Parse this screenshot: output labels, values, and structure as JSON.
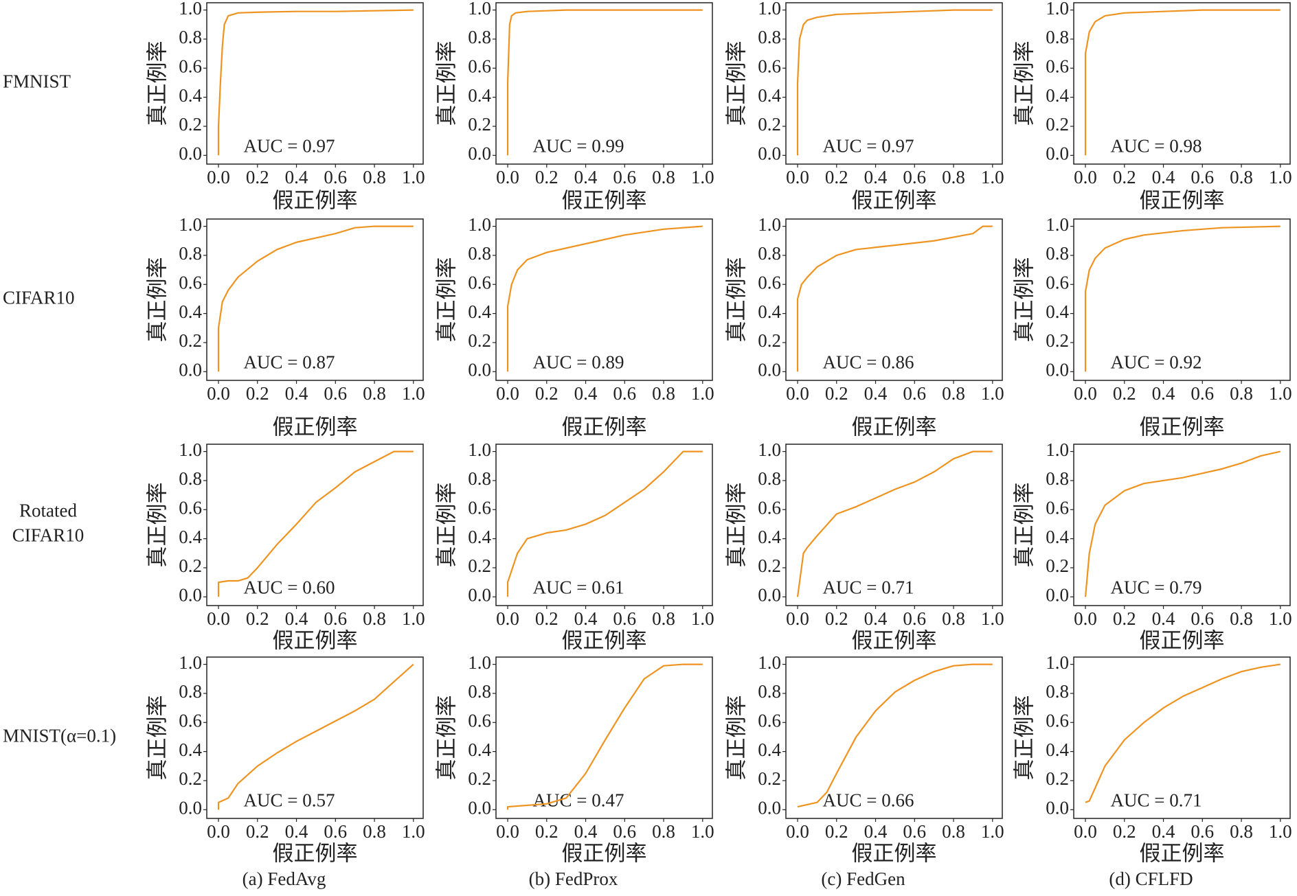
{
  "row_labels": [
    [
      "FMNIST"
    ],
    [
      "CIFAR10"
    ],
    [
      "Rotated",
      "CIFAR10"
    ],
    [
      "MNIST(α=0.1)"
    ]
  ],
  "captions": [
    "(a) FedAvg",
    "(b) FedProx",
    "(c) FedGen",
    "(d) CFLFD"
  ],
  "chart_data": [
    {
      "type": "line",
      "annotation": "AUC = 0.97",
      "xlabel": "假正例率",
      "ylabel": "真正例率",
      "color": "#ef9320",
      "x": [
        0,
        0,
        0.01,
        0.02,
        0.03,
        0.05,
        0.1,
        0.2,
        0.4,
        0.6,
        1
      ],
      "values": [
        0,
        0.2,
        0.5,
        0.75,
        0.9,
        0.96,
        0.98,
        0.985,
        0.99,
        0.99,
        1
      ],
      "xlim": [
        -0.06,
        1.05
      ],
      "ylim": [
        -0.06,
        1.05
      ],
      "xticks": [
        {
          "value": 0,
          "label": "0.0"
        },
        0.2,
        0.4,
        0.6,
        0.8,
        {
          "value": 1,
          "label": "1.0"
        }
      ],
      "yticks": [
        {
          "value": 0,
          "label": "0.0"
        },
        0.2,
        0.4,
        0.6,
        0.8,
        {
          "value": 1,
          "label": "1.0"
        }
      ]
    },
    {
      "type": "line",
      "annotation": "AUC = 0.99",
      "xlabel": "假正例率",
      "ylabel": "真正例率",
      "color": "#ef9320",
      "x": [
        0,
        0,
        0.01,
        0.02,
        0.04,
        0.1,
        0.3,
        1
      ],
      "values": [
        0,
        0.5,
        0.9,
        0.96,
        0.98,
        0.99,
        1,
        1
      ],
      "xlim": [
        -0.06,
        1.05
      ],
      "ylim": [
        -0.06,
        1.05
      ],
      "xticks": [
        {
          "value": 0,
          "label": "0.0"
        },
        0.2,
        0.4,
        0.6,
        0.8,
        {
          "value": 1,
          "label": "1.0"
        }
      ],
      "yticks": [
        {
          "value": 0,
          "label": "0.0"
        },
        0.2,
        0.4,
        0.6,
        0.8,
        {
          "value": 1,
          "label": "1.0"
        }
      ]
    },
    {
      "type": "line",
      "annotation": "AUC = 0.97",
      "xlabel": "假正例率",
      "ylabel": "真正例率",
      "color": "#ef9320",
      "x": [
        0,
        0,
        0.01,
        0.03,
        0.05,
        0.1,
        0.2,
        0.4,
        0.6,
        0.8,
        1
      ],
      "values": [
        0,
        0.5,
        0.8,
        0.9,
        0.93,
        0.95,
        0.97,
        0.98,
        0.99,
        1,
        1
      ],
      "xlim": [
        -0.06,
        1.05
      ],
      "ylim": [
        -0.06,
        1.05
      ],
      "xticks": [
        {
          "value": 0,
          "label": "0.0"
        },
        0.2,
        0.4,
        0.6,
        0.8,
        {
          "value": 1,
          "label": "1.0"
        }
      ],
      "yticks": [
        {
          "value": 0,
          "label": "0.0"
        },
        0.2,
        0.4,
        0.6,
        0.8,
        {
          "value": 1,
          "label": "1.0"
        }
      ]
    },
    {
      "type": "line",
      "annotation": "AUC = 0.98",
      "xlabel": "假正例率",
      "ylabel": "真正例率",
      "color": "#ef9320",
      "x": [
        0,
        0,
        0.02,
        0.05,
        0.1,
        0.2,
        0.4,
        0.6,
        1
      ],
      "values": [
        0,
        0.7,
        0.85,
        0.92,
        0.96,
        0.98,
        0.99,
        1,
        1
      ],
      "xlim": [
        -0.06,
        1.05
      ],
      "ylim": [
        -0.06,
        1.05
      ],
      "xticks": [
        {
          "value": 0,
          "label": "0.0"
        },
        0.2,
        0.4,
        0.6,
        0.8,
        {
          "value": 1,
          "label": "1.0"
        }
      ],
      "yticks": [
        {
          "value": 0,
          "label": "0.0"
        },
        0.2,
        0.4,
        0.6,
        0.8,
        {
          "value": 1,
          "label": "1.0"
        }
      ]
    },
    {
      "type": "line",
      "annotation": "AUC = 0.87",
      "xlabel": "假正例率",
      "ylabel": "真正例率",
      "color": "#ef9320",
      "x": [
        0,
        0,
        0.02,
        0.05,
        0.1,
        0.2,
        0.3,
        0.4,
        0.5,
        0.6,
        0.7,
        0.8,
        1
      ],
      "values": [
        0,
        0.3,
        0.48,
        0.56,
        0.65,
        0.76,
        0.84,
        0.89,
        0.92,
        0.95,
        0.99,
        1,
        1
      ],
      "xlim": [
        -0.06,
        1.05
      ],
      "ylim": [
        -0.06,
        1.05
      ],
      "xticks": [
        {
          "value": 0,
          "label": "0.0"
        },
        0.2,
        0.4,
        0.6,
        0.8,
        {
          "value": 1,
          "label": "1.0"
        }
      ],
      "yticks": [
        {
          "value": 0,
          "label": "0.0"
        },
        0.2,
        0.4,
        0.6,
        0.8,
        {
          "value": 1,
          "label": "1.0"
        }
      ]
    },
    {
      "type": "line",
      "annotation": "AUC = 0.89",
      "xlabel": "假正例率",
      "ylabel": "真正例率",
      "color": "#ef9320",
      "x": [
        0,
        0,
        0.02,
        0.05,
        0.1,
        0.2,
        0.4,
        0.6,
        0.8,
        1
      ],
      "values": [
        0,
        0.45,
        0.6,
        0.7,
        0.77,
        0.82,
        0.88,
        0.94,
        0.98,
        1
      ],
      "xlim": [
        -0.06,
        1.05
      ],
      "ylim": [
        -0.06,
        1.05
      ],
      "xticks": [
        {
          "value": 0,
          "label": "0.0"
        },
        0.2,
        0.4,
        0.6,
        0.8,
        {
          "value": 1,
          "label": "1.0"
        }
      ],
      "yticks": [
        {
          "value": 0,
          "label": "0.0"
        },
        0.2,
        0.4,
        0.6,
        0.8,
        {
          "value": 1,
          "label": "1.0"
        }
      ]
    },
    {
      "type": "line",
      "annotation": "AUC = 0.86",
      "xlabel": "假正例率",
      "ylabel": "真正例率",
      "color": "#ef9320",
      "x": [
        0,
        0,
        0.02,
        0.05,
        0.1,
        0.2,
        0.3,
        0.5,
        0.7,
        0.9,
        0.95,
        1
      ],
      "values": [
        0,
        0.5,
        0.6,
        0.65,
        0.72,
        0.8,
        0.84,
        0.87,
        0.9,
        0.95,
        1,
        1
      ],
      "xlim": [
        -0.06,
        1.05
      ],
      "ylim": [
        -0.06,
        1.05
      ],
      "xticks": [
        {
          "value": 0,
          "label": "0.0"
        },
        0.2,
        0.4,
        0.6,
        0.8,
        {
          "value": 1,
          "label": "1.0"
        }
      ],
      "yticks": [
        {
          "value": 0,
          "label": "0.0"
        },
        0.2,
        0.4,
        0.6,
        0.8,
        {
          "value": 1,
          "label": "1.0"
        }
      ]
    },
    {
      "type": "line",
      "annotation": "AUC = 0.92",
      "xlabel": "假正例率",
      "ylabel": "真正例率",
      "color": "#ef9320",
      "x": [
        0,
        0,
        0.02,
        0.05,
        0.1,
        0.2,
        0.3,
        0.5,
        0.7,
        1
      ],
      "values": [
        0,
        0.55,
        0.7,
        0.78,
        0.85,
        0.91,
        0.94,
        0.97,
        0.99,
        1
      ],
      "xlim": [
        -0.06,
        1.05
      ],
      "ylim": [
        -0.06,
        1.05
      ],
      "xticks": [
        {
          "value": 0,
          "label": "0.0"
        },
        0.2,
        0.4,
        0.6,
        0.8,
        {
          "value": 1,
          "label": "1.0"
        }
      ],
      "yticks": [
        {
          "value": 0,
          "label": "0.0"
        },
        0.2,
        0.4,
        0.6,
        0.8,
        {
          "value": 1,
          "label": "1.0"
        }
      ]
    },
    {
      "type": "line",
      "annotation": "AUC = 0.60",
      "xlabel": "假正例率",
      "ylabel": "真正例率",
      "color": "#ef9320",
      "x": [
        0,
        0,
        0.05,
        0.1,
        0.15,
        0.2,
        0.3,
        0.4,
        0.5,
        0.6,
        0.7,
        0.8,
        0.9,
        1
      ],
      "values": [
        0,
        0.1,
        0.11,
        0.11,
        0.13,
        0.2,
        0.36,
        0.5,
        0.65,
        0.75,
        0.86,
        0.93,
        1,
        1
      ],
      "xlim": [
        -0.06,
        1.05
      ],
      "ylim": [
        -0.06,
        1.05
      ],
      "xticks": [
        {
          "value": 0,
          "label": "0.0"
        },
        0.2,
        0.4,
        0.6,
        0.8,
        {
          "value": 1,
          "label": "1.0"
        }
      ],
      "yticks": [
        {
          "value": 0,
          "label": "0.0"
        },
        0.2,
        0.4,
        0.6,
        0.8,
        {
          "value": 1,
          "label": "1.0"
        }
      ]
    },
    {
      "type": "line",
      "annotation": "AUC = 0.61",
      "xlabel": "假正例率",
      "ylabel": "真正例率",
      "color": "#ef9320",
      "x": [
        0,
        0,
        0.05,
        0.1,
        0.2,
        0.3,
        0.4,
        0.5,
        0.6,
        0.7,
        0.8,
        0.9,
        1
      ],
      "values": [
        0,
        0.1,
        0.3,
        0.4,
        0.44,
        0.46,
        0.5,
        0.56,
        0.65,
        0.74,
        0.86,
        1,
        1
      ],
      "xlim": [
        -0.06,
        1.05
      ],
      "ylim": [
        -0.06,
        1.05
      ],
      "xticks": [
        {
          "value": 0,
          "label": "0.0"
        },
        0.2,
        0.4,
        0.6,
        0.8,
        {
          "value": 1,
          "label": "1.0"
        }
      ],
      "yticks": [
        {
          "value": 0,
          "label": "0.0"
        },
        0.2,
        0.4,
        0.6,
        0.8,
        {
          "value": 1,
          "label": "1.0"
        }
      ]
    },
    {
      "type": "line",
      "annotation": "AUC = 0.71",
      "xlabel": "假正例率",
      "ylabel": "真正例率",
      "color": "#ef9320",
      "x": [
        0,
        0.03,
        0.05,
        0.1,
        0.2,
        0.3,
        0.4,
        0.5,
        0.6,
        0.7,
        0.8,
        0.9,
        1
      ],
      "values": [
        0,
        0.3,
        0.34,
        0.42,
        0.57,
        0.62,
        0.68,
        0.74,
        0.79,
        0.86,
        0.95,
        1,
        1
      ],
      "xlim": [
        -0.06,
        1.05
      ],
      "ylim": [
        -0.06,
        1.05
      ],
      "xticks": [
        {
          "value": 0,
          "label": "0.0"
        },
        0.2,
        0.4,
        0.6,
        0.8,
        {
          "value": 1,
          "label": "1.0"
        }
      ],
      "yticks": [
        {
          "value": 0,
          "label": "0.0"
        },
        0.2,
        0.4,
        0.6,
        0.8,
        {
          "value": 1,
          "label": "1.0"
        }
      ]
    },
    {
      "type": "line",
      "annotation": "AUC = 0.79",
      "xlabel": "假正例率",
      "ylabel": "真正例率",
      "color": "#ef9320",
      "x": [
        0,
        0.02,
        0.05,
        0.1,
        0.2,
        0.3,
        0.4,
        0.5,
        0.6,
        0.7,
        0.8,
        0.9,
        1
      ],
      "values": [
        0,
        0.3,
        0.5,
        0.63,
        0.73,
        0.78,
        0.8,
        0.82,
        0.85,
        0.88,
        0.92,
        0.97,
        1
      ],
      "xlim": [
        -0.06,
        1.05
      ],
      "ylim": [
        -0.06,
        1.05
      ],
      "xticks": [
        {
          "value": 0,
          "label": "0.0"
        },
        0.2,
        0.4,
        0.6,
        0.8,
        {
          "value": 1,
          "label": "1.0"
        }
      ],
      "yticks": [
        {
          "value": 0,
          "label": "0.0"
        },
        0.2,
        0.4,
        0.6,
        0.8,
        {
          "value": 1,
          "label": "1.0"
        }
      ]
    },
    {
      "type": "line",
      "annotation": "AUC = 0.57",
      "xlabel": "假正例率",
      "ylabel": "真正例率",
      "color": "#ef9320",
      "x": [
        0,
        0,
        0.05,
        0.1,
        0.2,
        0.3,
        0.4,
        0.5,
        0.6,
        0.7,
        0.8,
        0.9,
        1
      ],
      "values": [
        0,
        0.05,
        0.08,
        0.18,
        0.3,
        0.39,
        0.47,
        0.54,
        0.61,
        0.68,
        0.76,
        0.88,
        1
      ],
      "xlim": [
        -0.06,
        1.05
      ],
      "ylim": [
        -0.06,
        1.05
      ],
      "xticks": [
        {
          "value": 0,
          "label": "0.0"
        },
        0.2,
        0.4,
        0.6,
        0.8,
        {
          "value": 1,
          "label": "1.0"
        }
      ],
      "yticks": [
        {
          "value": 0,
          "label": "0.0"
        },
        0.2,
        0.4,
        0.6,
        0.8,
        {
          "value": 1,
          "label": "1.0"
        }
      ]
    },
    {
      "type": "line",
      "annotation": "AUC = 0.47",
      "xlabel": "假正例率",
      "ylabel": "真正例率",
      "color": "#ef9320",
      "x": [
        0,
        0,
        0.1,
        0.2,
        0.3,
        0.4,
        0.5,
        0.6,
        0.7,
        0.8,
        0.9,
        1
      ],
      "values": [
        0,
        0.02,
        0.03,
        0.04,
        0.08,
        0.25,
        0.48,
        0.7,
        0.9,
        0.99,
        1,
        1
      ],
      "xlim": [
        -0.06,
        1.05
      ],
      "ylim": [
        -0.06,
        1.05
      ],
      "xticks": [
        {
          "value": 0,
          "label": "0.0"
        },
        0.2,
        0.4,
        0.6,
        0.8,
        {
          "value": 1,
          "label": "1.0"
        }
      ],
      "yticks": [
        {
          "value": 0,
          "label": "0.0"
        },
        0.2,
        0.4,
        0.6,
        0.8,
        {
          "value": 1,
          "label": "1.0"
        }
      ]
    },
    {
      "type": "line",
      "annotation": "AUC = 0.66",
      "xlabel": "假正例率",
      "ylabel": "真正例率",
      "color": "#ef9320",
      "x": [
        0,
        0.1,
        0.15,
        0.2,
        0.3,
        0.4,
        0.5,
        0.6,
        0.7,
        0.8,
        0.9,
        1
      ],
      "values": [
        0.02,
        0.05,
        0.12,
        0.25,
        0.5,
        0.68,
        0.81,
        0.89,
        0.95,
        0.99,
        1,
        1
      ],
      "xlim": [
        -0.06,
        1.05
      ],
      "ylim": [
        -0.06,
        1.05
      ],
      "xticks": [
        {
          "value": 0,
          "label": "0.0"
        },
        0.2,
        0.4,
        0.6,
        0.8,
        {
          "value": 1,
          "label": "1.0"
        }
      ],
      "yticks": [
        {
          "value": 0,
          "label": "0.0"
        },
        0.2,
        0.4,
        0.6,
        0.8,
        {
          "value": 1,
          "label": "1.0"
        }
      ]
    },
    {
      "type": "line",
      "annotation": "AUC = 0.71",
      "xlabel": "假正例率",
      "ylabel": "真正例率",
      "color": "#ef9320",
      "x": [
        0,
        0.02,
        0.05,
        0.1,
        0.2,
        0.3,
        0.4,
        0.5,
        0.6,
        0.7,
        0.8,
        0.9,
        1
      ],
      "values": [
        0.05,
        0.06,
        0.15,
        0.3,
        0.48,
        0.6,
        0.7,
        0.78,
        0.84,
        0.9,
        0.95,
        0.98,
        1
      ],
      "xlim": [
        -0.06,
        1.05
      ],
      "ylim": [
        -0.06,
        1.05
      ],
      "xticks": [
        {
          "value": 0,
          "label": "0.0"
        },
        0.2,
        0.4,
        0.6,
        0.8,
        {
          "value": 1,
          "label": "1.0"
        }
      ],
      "yticks": [
        {
          "value": 0,
          "label": "0.0"
        },
        0.2,
        0.4,
        0.6,
        0.8,
        {
          "value": 1,
          "label": "1.0"
        }
      ]
    }
  ]
}
